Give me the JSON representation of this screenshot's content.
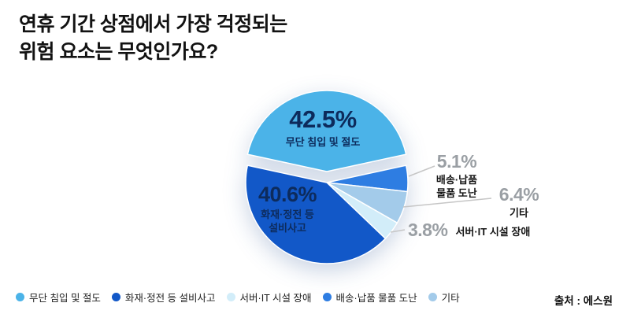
{
  "title": {
    "line1": "연휴 기간 상점에서 가장 걱정되는",
    "line2": "위험 요소는 무엇인가요?"
  },
  "source": "출처 : 에스원",
  "chart_data": {
    "type": "pie",
    "title": "연휴 기간 상점에서 가장 걱정되는 위험 요소는 무엇인가요?",
    "value_unit": "%",
    "legend_position": "bottom",
    "slices": [
      {
        "label": "무단 침입 및 절도",
        "value": 42.5,
        "color": "#4bb3e8",
        "exploded": true
      },
      {
        "label": "배송·납품 물품 도난",
        "value": 5.1,
        "color": "#2e7de2",
        "exploded": false
      },
      {
        "label": "기타",
        "value": 6.4,
        "color": "#a3cbea",
        "exploded": false
      },
      {
        "label": "서버·IT 시설 장애",
        "value": 3.8,
        "color": "#d2edf9",
        "exploded": false
      },
      {
        "label": "화재·정전 등 설비사고",
        "value": 40.6,
        "color": "#1258c8",
        "exploded": false
      }
    ],
    "source": "에스원"
  },
  "callouts": {
    "intrusion": {
      "pct": "42.5%",
      "label": "무단 침입 및 절도"
    },
    "fire": {
      "pct": "40.6%",
      "label_line1": "화재·정전 등",
      "label_line2": "설비사고"
    },
    "delivery": {
      "pct": "5.1%",
      "label_line1": "배송·납품",
      "label_line2": "물품 도난"
    },
    "etc": {
      "pct": "6.4%",
      "label": "기타"
    },
    "server": {
      "pct": "3.8%",
      "label": "서버·IT 시설 장애"
    }
  },
  "legend": {
    "items": [
      {
        "label": "무단 침입 및 절도",
        "color": "#4bb3e8"
      },
      {
        "label": "화재·정전 등 설비사고",
        "color": "#1258c8"
      },
      {
        "label": "서버·IT 시설 장애",
        "color": "#d2edf9"
      },
      {
        "label": "배송·납품 물품 도난",
        "color": "#2e7de2"
      },
      {
        "label": "기타",
        "color": "#a3cbea"
      }
    ]
  }
}
